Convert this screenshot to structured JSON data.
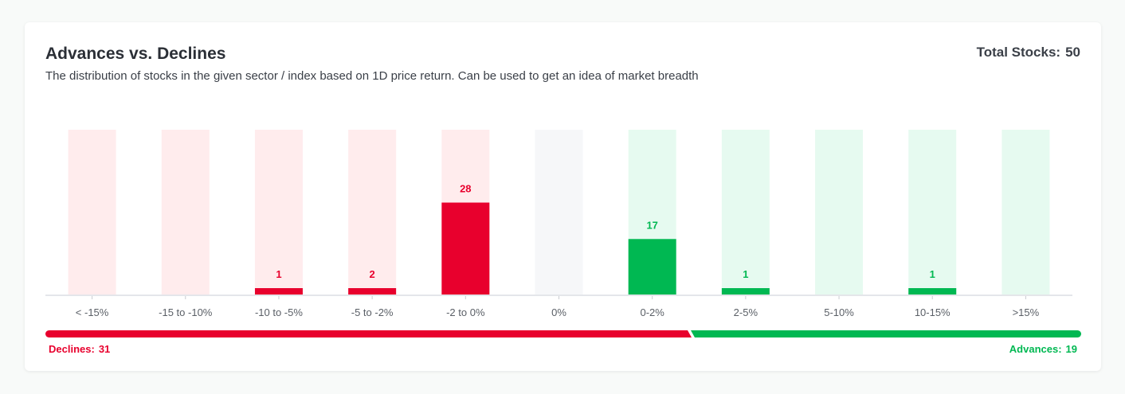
{
  "header": {
    "title": "Advances vs. Declines",
    "subtitle": "The distribution of stocks in the given sector / index based on 1D price return. Can be used to get an idea of market breadth",
    "total_label": "Total Stocks:",
    "total_value": "50"
  },
  "breadth": {
    "declines_label": "Declines:",
    "declines_value": 31,
    "advances_label": "Advances:",
    "advances_value": 19
  },
  "colors": {
    "decline": "#e8002d",
    "decline_bg": "#ffeced",
    "neutral_bg": "#f6f7f9",
    "advance": "#00b852",
    "advance_bg": "#e6faf0",
    "axis": "#e4e6ea",
    "tick_text": "#5a5f66"
  },
  "chart_data": {
    "type": "bar",
    "categories": [
      "< -15%",
      "-15 to -10%",
      "-10 to -5%",
      "-5 to -2%",
      "-2 to 0%",
      "0%",
      "0-2%",
      "2-5%",
      "5-10%",
      "10-15%",
      ">15%"
    ],
    "values": [
      0,
      0,
      1,
      2,
      28,
      0,
      17,
      1,
      0,
      1,
      0
    ],
    "groups": [
      "decline",
      "decline",
      "decline",
      "decline",
      "decline",
      "neutral",
      "advance",
      "advance",
      "advance",
      "advance",
      "advance"
    ],
    "ylim": [
      0,
      50
    ],
    "grid": false
  }
}
